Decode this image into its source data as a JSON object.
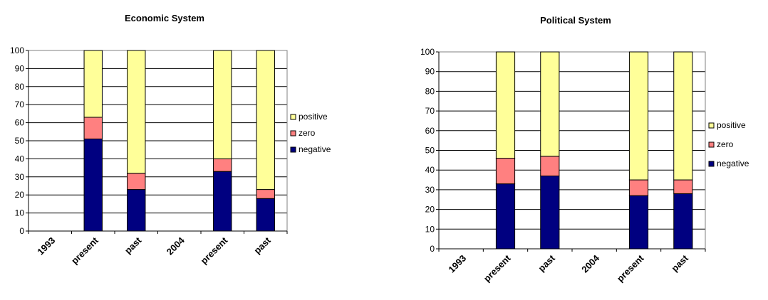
{
  "colors": {
    "positive": "#ffff99",
    "zero": "#ff8080",
    "negative": "#000080"
  },
  "chart_data": [
    {
      "type": "bar",
      "stacked": true,
      "title": "Economic System",
      "categories": [
        "1993",
        "present",
        "past",
        "2004",
        "present",
        "past"
      ],
      "series": [
        {
          "name": "negative",
          "values": [
            0,
            51,
            23,
            0,
            33,
            18
          ]
        },
        {
          "name": "zero",
          "values": [
            0,
            12,
            9,
            0,
            7,
            5
          ]
        },
        {
          "name": "positive",
          "values": [
            0,
            37,
            68,
            0,
            60,
            77
          ]
        }
      ],
      "yticks": [
        "0",
        "10",
        "20",
        "30",
        "40",
        "50",
        "60",
        "70",
        "80",
        "90",
        "100"
      ],
      "ylim": [
        0,
        100
      ],
      "grid": true,
      "legend": "right",
      "legend_entries": [
        "positive",
        "zero",
        "negative"
      ]
    },
    {
      "type": "bar",
      "stacked": true,
      "title": "Political System",
      "categories": [
        "1993",
        "present",
        "past",
        "2004",
        "present",
        "past"
      ],
      "series": [
        {
          "name": "negative",
          "values": [
            0,
            33,
            37,
            0,
            27,
            28
          ]
        },
        {
          "name": "zero",
          "values": [
            0,
            13,
            10,
            0,
            8,
            7
          ]
        },
        {
          "name": "positive",
          "values": [
            0,
            54,
            53,
            0,
            65,
            65
          ]
        }
      ],
      "yticks": [
        "0",
        "10",
        "20",
        "30",
        "40",
        "50",
        "60",
        "70",
        "80",
        "90",
        "100"
      ],
      "ylim": [
        0,
        100
      ],
      "grid": true,
      "legend": "right",
      "legend_entries": [
        "positive",
        "zero",
        "negative"
      ]
    }
  ]
}
